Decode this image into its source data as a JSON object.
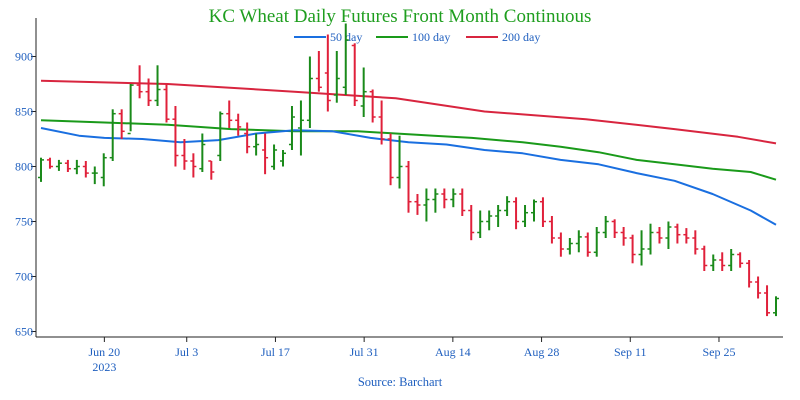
{
  "chart_data": {
    "type": "ohlc",
    "title": "KC Wheat Daily Futures Front Month Continuous",
    "source": "Source: Barchart",
    "colors": {
      "title": "#1f9e1f",
      "axis_text": "#1f5fbf",
      "up": "#1a8a1a",
      "down": "#e0203a",
      "ma50": "#1a6fe0",
      "ma100": "#1a9a1a",
      "ma200": "#d8253f"
    },
    "y_ticks": [
      650,
      700,
      750,
      800,
      850,
      900
    ],
    "ylim": [
      645,
      935
    ],
    "xlim": [
      0,
      116
    ],
    "x_ticks": [
      {
        "label": "Jun 20",
        "sublabel": "2023",
        "index": 10
      },
      {
        "label": "Jul 3",
        "index": 23
      },
      {
        "label": "Jul 17",
        "index": 37
      },
      {
        "label": "Jul 31",
        "index": 51
      },
      {
        "label": "Aug 14",
        "index": 65
      },
      {
        "label": "Aug 28",
        "index": 79
      },
      {
        "label": "Sep 11",
        "index": 93
      },
      {
        "label": "Sep 25",
        "index": 107
      }
    ],
    "legend": [
      {
        "name": "50 day",
        "color": "#1a6fe0"
      },
      {
        "name": "100 day",
        "color": "#1a9a1a"
      },
      {
        "name": "200 day",
        "color": "#d8253f"
      }
    ],
    "ohlc": [
      [
        0,
        790,
        808,
        786,
        806
      ],
      [
        1,
        806,
        808,
        798,
        800
      ],
      [
        2,
        800,
        806,
        796,
        803
      ],
      [
        3,
        803,
        806,
        795,
        798
      ],
      [
        4,
        798,
        806,
        793,
        800
      ],
      [
        5,
        800,
        805,
        790,
        794
      ],
      [
        6,
        794,
        800,
        784,
        794
      ],
      [
        7,
        790,
        812,
        782,
        808
      ],
      [
        8,
        808,
        852,
        805,
        848
      ],
      [
        9,
        848,
        852,
        825,
        832
      ],
      [
        10,
        830,
        875,
        832,
        874
      ],
      [
        11,
        874,
        892,
        862,
        868
      ],
      [
        12,
        868,
        880,
        855,
        860
      ],
      [
        13,
        860,
        892,
        855,
        870
      ],
      [
        14,
        870,
        875,
        840,
        843
      ],
      [
        15,
        843,
        855,
        800,
        810
      ],
      [
        16,
        810,
        825,
        797,
        805
      ],
      [
        17,
        805,
        812,
        790,
        800
      ],
      [
        18,
        798,
        830,
        795,
        820
      ],
      [
        19,
        805,
        805,
        788,
        795
      ],
      [
        20,
        810,
        850,
        805,
        848
      ],
      [
        21,
        848,
        860,
        835,
        842
      ],
      [
        22,
        842,
        848,
        828,
        836
      ],
      [
        23,
        830,
        840,
        812,
        818
      ],
      [
        24,
        818,
        830,
        810,
        820
      ],
      [
        25,
        815,
        830,
        793,
        808
      ],
      [
        26,
        800,
        820,
        797,
        815
      ],
      [
        27,
        805,
        815,
        800,
        812
      ],
      [
        28,
        820,
        855,
        815,
        845
      ],
      [
        29,
        835,
        860,
        810,
        842
      ],
      [
        30,
        842,
        900,
        835,
        880
      ],
      [
        31,
        880,
        905,
        868,
        872
      ],
      [
        32,
        885,
        920,
        850,
        860
      ],
      [
        33,
        865,
        905,
        858,
        880
      ],
      [
        34,
        872,
        930,
        865,
        915
      ],
      [
        35,
        910,
        912,
        855,
        860
      ],
      [
        36,
        855,
        890,
        845,
        868
      ],
      [
        37,
        868,
        870,
        840,
        845
      ],
      [
        38,
        845,
        860,
        820,
        825
      ],
      [
        39,
        825,
        830,
        783,
        790
      ],
      [
        40,
        790,
        828,
        780,
        800
      ],
      [
        41,
        800,
        805,
        758,
        768
      ],
      [
        42,
        768,
        775,
        756,
        765
      ],
      [
        43,
        765,
        780,
        750,
        770
      ],
      [
        44,
        770,
        780,
        758,
        775
      ],
      [
        45,
        775,
        780,
        762,
        770
      ],
      [
        46,
        770,
        780,
        763,
        775
      ],
      [
        47,
        775,
        780,
        755,
        760
      ],
      [
        48,
        760,
        765,
        733,
        740
      ],
      [
        49,
        740,
        760,
        735,
        750
      ],
      [
        50,
        750,
        760,
        742,
        755
      ],
      [
        51,
        755,
        765,
        745,
        760
      ],
      [
        52,
        760,
        773,
        755,
        768
      ],
      [
        53,
        768,
        772,
        743,
        750
      ],
      [
        54,
        750,
        765,
        745,
        758
      ],
      [
        55,
        758,
        770,
        750,
        768
      ],
      [
        56,
        768,
        772,
        745,
        750
      ],
      [
        57,
        750,
        755,
        730,
        735
      ],
      [
        58,
        735,
        740,
        718,
        725
      ],
      [
        59,
        725,
        735,
        720,
        730
      ],
      [
        60,
        730,
        742,
        722,
        736
      ],
      [
        61,
        736,
        740,
        718,
        722
      ],
      [
        62,
        722,
        745,
        718,
        740
      ],
      [
        63,
        740,
        755,
        735,
        750
      ],
      [
        64,
        750,
        752,
        735,
        740
      ],
      [
        65,
        740,
        745,
        728,
        735
      ],
      [
        66,
        735,
        738,
        712,
        720
      ],
      [
        67,
        720,
        742,
        710,
        725
      ],
      [
        68,
        725,
        748,
        720,
        740
      ],
      [
        69,
        740,
        745,
        730,
        735
      ],
      [
        70,
        735,
        750,
        725,
        745
      ],
      [
        71,
        745,
        748,
        730,
        738
      ],
      [
        72,
        738,
        744,
        730,
        735
      ],
      [
        73,
        735,
        742,
        720,
        725
      ],
      [
        74,
        725,
        728,
        705,
        710
      ],
      [
        75,
        710,
        720,
        705,
        715
      ],
      [
        76,
        715,
        722,
        705,
        710
      ],
      [
        77,
        710,
        725,
        705,
        720
      ],
      [
        78,
        720,
        722,
        708,
        712
      ],
      [
        79,
        712,
        715,
        690,
        695
      ],
      [
        80,
        695,
        700,
        680,
        685
      ],
      [
        81,
        685,
        692,
        664,
        667
      ],
      [
        82,
        667,
        682,
        664,
        680
      ]
    ],
    "ma50": [
      [
        0,
        835
      ],
      [
        6,
        828
      ],
      [
        10,
        826
      ],
      [
        16,
        825
      ],
      [
        22,
        822
      ],
      [
        28,
        824
      ],
      [
        34,
        830
      ],
      [
        40,
        833
      ],
      [
        46,
        832
      ],
      [
        52,
        826
      ],
      [
        58,
        822
      ],
      [
        64,
        820
      ],
      [
        70,
        815
      ],
      [
        76,
        812
      ],
      [
        82,
        806
      ],
      [
        88,
        802
      ],
      [
        94,
        794
      ],
      [
        100,
        787
      ],
      [
        106,
        775
      ],
      [
        112,
        760
      ],
      [
        116,
        747
      ]
    ],
    "ma100": [
      [
        0,
        842
      ],
      [
        10,
        840
      ],
      [
        20,
        838
      ],
      [
        30,
        834
      ],
      [
        40,
        832
      ],
      [
        50,
        832
      ],
      [
        56,
        830
      ],
      [
        62,
        828
      ],
      [
        68,
        826
      ],
      [
        76,
        822
      ],
      [
        82,
        818
      ],
      [
        88,
        813
      ],
      [
        94,
        806
      ],
      [
        100,
        802
      ],
      [
        106,
        798
      ],
      [
        112,
        795
      ],
      [
        116,
        788
      ]
    ],
    "ma200": [
      [
        0,
        878
      ],
      [
        20,
        875
      ],
      [
        40,
        868
      ],
      [
        56,
        862
      ],
      [
        70,
        850
      ],
      [
        86,
        843
      ],
      [
        100,
        834
      ],
      [
        110,
        827
      ],
      [
        116,
        821
      ]
    ]
  }
}
